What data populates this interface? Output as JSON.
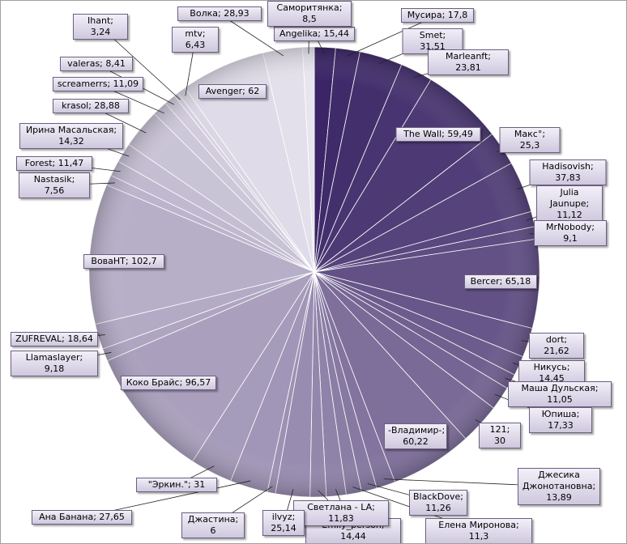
{
  "chart_data": {
    "type": "pie",
    "values": [
      15.44,
      17.8,
      31.51,
      23.81,
      59.49,
      25.3,
      37.83,
      11.12,
      9.1,
      65.18,
      21.62,
      14.45,
      11.05,
      17.33,
      30,
      60.22,
      13.89,
      11.26,
      11.3,
      14.44,
      11.83,
      25.14,
      6,
      27.65,
      31,
      96.57,
      9.18,
      18.64,
      102.7,
      7.56,
      11.47,
      14.32,
      28.88,
      11.09,
      8.41,
      3.24,
      6.43,
      62,
      28.93,
      8.5
    ],
    "value_labels": [
      "Angelika; 15,44",
      "Мусира; 17,8",
      "Smet; 31,51",
      "Marleanft; 23,81",
      "The Wall; 59,49",
      "Макс°; 25,3",
      "Hadisovish; 37,83",
      "Julia Jaunupe; 11,12",
      "MrNobody; 9,1",
      "Bercer; 65,18",
      "dort; 21,62",
      "Никусь; 14,45",
      "Маша Дульская; 11,05",
      "Юпиша; 17,33",
      "121; 30",
      "-Владимир-; 60,22",
      "Джесика Джонотановна; 13,89",
      "BlackDove; 11,26",
      "Елена Миронова; 11,3",
      "Emily_person; 14,44",
      "Светлана - LA; 11,83",
      "ilvyz; 25,14",
      "Джастина; 6",
      "Ана Банана; 27,65",
      "\"Эркин.\"; 31",
      "Коко Брайс; 96,57",
      "Llamaslayer; 9,18",
      "ZUFREVAL; 18,64",
      "ВоваНТ; 102,7",
      "Nastasik; 7,56",
      "Forest; 11,47",
      "Ирина Масальская; 14,32",
      "krasol; 28,88",
      "screamerrs; 11,09",
      "valeras; 8,41",
      "Ihant; 3,24",
      "mtv; 6,43",
      "Avenger; 62",
      "Волка; 28,93",
      "Саморитянка; 8,5"
    ],
    "colors": [
      "#3b2566",
      "#e8e5ef"
    ]
  }
}
